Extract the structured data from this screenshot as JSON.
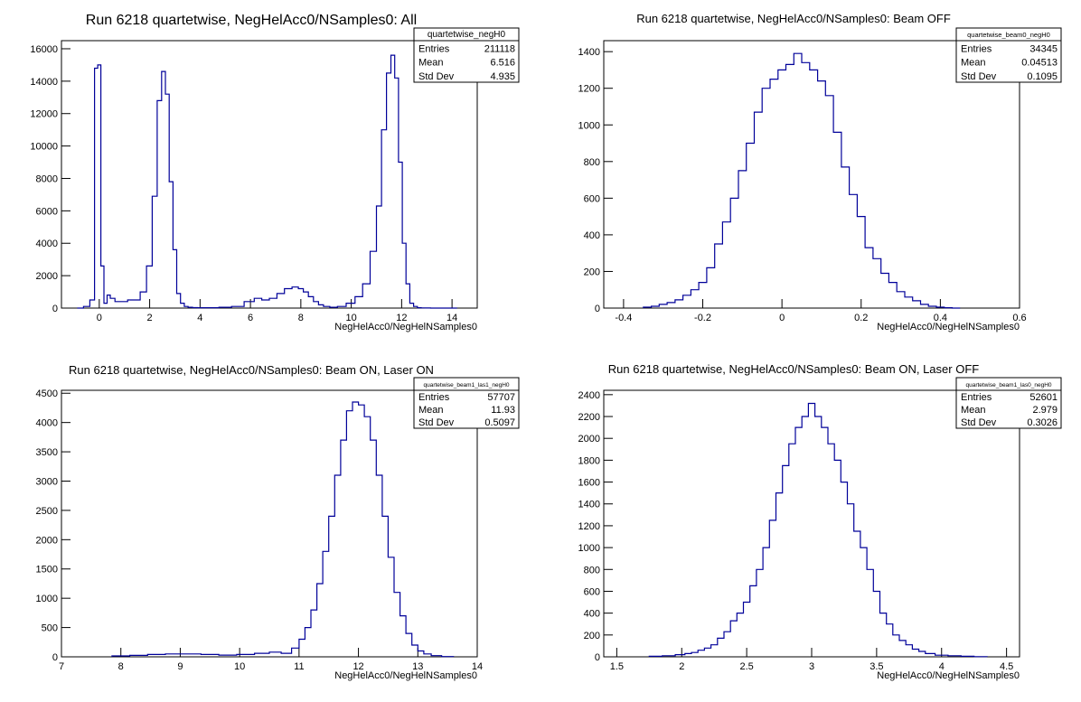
{
  "chart_data": [
    {
      "type": "bar",
      "title": "Run 6218 quartetwise, NegHelAcc0/NSamples0: All",
      "xlabel": "NegHelAcc0/NegHelNSamples0",
      "xlim": [
        -1.5,
        15
      ],
      "ylim": [
        0,
        16500
      ],
      "xticks": [
        0,
        2,
        4,
        6,
        8,
        10,
        12,
        14
      ],
      "yticks": [
        0,
        2000,
        4000,
        6000,
        8000,
        10000,
        12000,
        14000,
        16000
      ],
      "line_color": "#000099",
      "stats": {
        "name": "quartetwise_negH0",
        "entries": "211118",
        "mean": "6.516",
        "std_dev": "4.935"
      },
      "x": [
        -0.75,
        -0.5,
        -0.25,
        -0.125,
        0,
        0.125,
        0.25,
        0.375,
        0.5,
        0.75,
        1,
        1.25,
        1.5,
        1.75,
        2,
        2.2,
        2.4,
        2.55,
        2.7,
        2.85,
        3.0,
        3.15,
        3.3,
        3.45,
        3.6,
        3.8,
        4,
        4.5,
        5,
        5.5,
        6,
        6.3,
        6.6,
        6.9,
        7.2,
        7.5,
        7.8,
        8.0,
        8.2,
        8.4,
        8.6,
        8.8,
        9.0,
        9.3,
        9.6,
        10,
        10.3,
        10.6,
        10.9,
        11.1,
        11.3,
        11.5,
        11.65,
        11.8,
        11.95,
        12.1,
        12.25,
        12.4,
        12.55,
        12.7,
        12.85,
        13,
        13.3,
        13.6,
        14
      ],
      "values": [
        0,
        100,
        500,
        14800,
        15000,
        2600,
        300,
        800,
        600,
        400,
        400,
        500,
        500,
        1000,
        2600,
        6900,
        12800,
        14600,
        13200,
        7800,
        3600,
        900,
        300,
        100,
        50,
        30,
        20,
        20,
        50,
        100,
        400,
        600,
        500,
        600,
        900,
        1200,
        1300,
        1200,
        1000,
        700,
        400,
        200,
        100,
        50,
        100,
        300,
        700,
        1500,
        3500,
        6300,
        11000,
        14500,
        15600,
        14200,
        9000,
        4000,
        1500,
        300,
        100,
        20,
        10,
        5,
        0,
        0,
        0
      ]
    },
    {
      "type": "bar",
      "title": "Run 6218 quartetwise, NegHelAcc0/NSamples0: Beam OFF",
      "xlabel": "NegHelAcc0/NegHelNSamples0",
      "xlim": [
        -0.45,
        0.6
      ],
      "ylim": [
        0,
        1460
      ],
      "xticks": [
        -0.4,
        -0.2,
        0,
        0.2,
        0.4,
        0.6
      ],
      "yticks": [
        0,
        200,
        400,
        600,
        800,
        1000,
        1200,
        1400
      ],
      "line_color": "#000099",
      "stats": {
        "name": "quartetwise_beam0_negH0",
        "entries": "34345",
        "mean": "0.04513",
        "std_dev": "0.1095"
      },
      "x": [
        -0.34,
        -0.32,
        -0.3,
        -0.28,
        -0.26,
        -0.24,
        -0.22,
        -0.2,
        -0.18,
        -0.16,
        -0.14,
        -0.12,
        -0.1,
        -0.08,
        -0.06,
        -0.04,
        -0.02,
        0,
        0.02,
        0.04,
        0.06,
        0.08,
        0.1,
        0.12,
        0.14,
        0.16,
        0.18,
        0.2,
        0.22,
        0.24,
        0.26,
        0.28,
        0.3,
        0.32,
        0.34,
        0.36,
        0.38,
        0.4,
        0.42,
        0.44
      ],
      "values": [
        5,
        10,
        20,
        30,
        45,
        70,
        100,
        140,
        220,
        350,
        470,
        600,
        750,
        900,
        1070,
        1200,
        1250,
        1300,
        1330,
        1390,
        1340,
        1300,
        1240,
        1160,
        960,
        770,
        620,
        500,
        330,
        270,
        190,
        140,
        90,
        60,
        40,
        20,
        10,
        5,
        2,
        0
      ]
    },
    {
      "type": "bar",
      "title": "Run 6218 quartetwise, NegHelAcc0/NSamples0: Beam ON, Laser ON",
      "xlabel": "NegHelAcc0/NegHelNSamples0",
      "xlim": [
        7,
        14
      ],
      "ylim": [
        0,
        4550
      ],
      "xticks": [
        7,
        8,
        9,
        10,
        11,
        12,
        13,
        14
      ],
      "yticks": [
        0,
        500,
        1000,
        1500,
        2000,
        2500,
        3000,
        3500,
        4000,
        4500
      ],
      "line_color": "#000099",
      "stats": {
        "name": "quartetwise_beam1_las1_negH0",
        "entries": "57707",
        "mean": "11.93",
        "std_dev": "0.5097"
      },
      "x": [
        8.0,
        8.3,
        8.6,
        8.9,
        9.2,
        9.5,
        9.8,
        10.1,
        10.4,
        10.6,
        10.8,
        10.95,
        11.05,
        11.15,
        11.25,
        11.35,
        11.45,
        11.55,
        11.65,
        11.75,
        11.85,
        11.95,
        12.05,
        12.15,
        12.25,
        12.35,
        12.45,
        12.55,
        12.65,
        12.75,
        12.85,
        12.95,
        13.05,
        13.15,
        13.3,
        13.5
      ],
      "values": [
        15,
        25,
        40,
        50,
        50,
        40,
        30,
        40,
        60,
        80,
        60,
        150,
        300,
        500,
        800,
        1250,
        1800,
        2400,
        3100,
        3700,
        4200,
        4350,
        4300,
        4100,
        3700,
        3100,
        2400,
        1700,
        1100,
        700,
        400,
        200,
        100,
        50,
        20,
        5
      ]
    },
    {
      "type": "bar",
      "title": "Run 6218 quartetwise, NegHelAcc0/NSamples0: Beam ON, Laser OFF",
      "xlabel": "NegHelAcc0/NegHelNSamples0",
      "xlim": [
        1.4,
        4.6
      ],
      "ylim": [
        0,
        2440
      ],
      "xticks": [
        1.5,
        2,
        2.5,
        3,
        3.5,
        4,
        4.5
      ],
      "yticks": [
        0,
        200,
        400,
        600,
        800,
        1000,
        1200,
        1400,
        1600,
        1800,
        2000,
        2200,
        2400
      ],
      "line_color": "#000099",
      "stats": {
        "name": "quartetwise_beam1_las0_negH0",
        "entries": "52601",
        "mean": "2.979",
        "std_dev": "0.3026"
      },
      "x": [
        1.8,
        1.9,
        2.0,
        2.05,
        2.1,
        2.15,
        2.2,
        2.25,
        2.3,
        2.35,
        2.4,
        2.45,
        2.5,
        2.55,
        2.6,
        2.65,
        2.7,
        2.75,
        2.8,
        2.85,
        2.9,
        2.95,
        3.0,
        3.05,
        3.1,
        3.15,
        3.2,
        3.25,
        3.3,
        3.35,
        3.4,
        3.45,
        3.5,
        3.55,
        3.6,
        3.65,
        3.7,
        3.75,
        3.8,
        3.85,
        3.9,
        4.0,
        4.1,
        4.2,
        4.3
      ],
      "values": [
        5,
        10,
        20,
        30,
        40,
        60,
        80,
        110,
        170,
        230,
        330,
        400,
        500,
        650,
        800,
        1000,
        1250,
        1500,
        1750,
        1950,
        2100,
        2200,
        2320,
        2200,
        2100,
        1950,
        1800,
        1600,
        1400,
        1150,
        1000,
        800,
        600,
        400,
        300,
        200,
        150,
        110,
        70,
        50,
        30,
        15,
        10,
        5,
        2
      ]
    }
  ]
}
